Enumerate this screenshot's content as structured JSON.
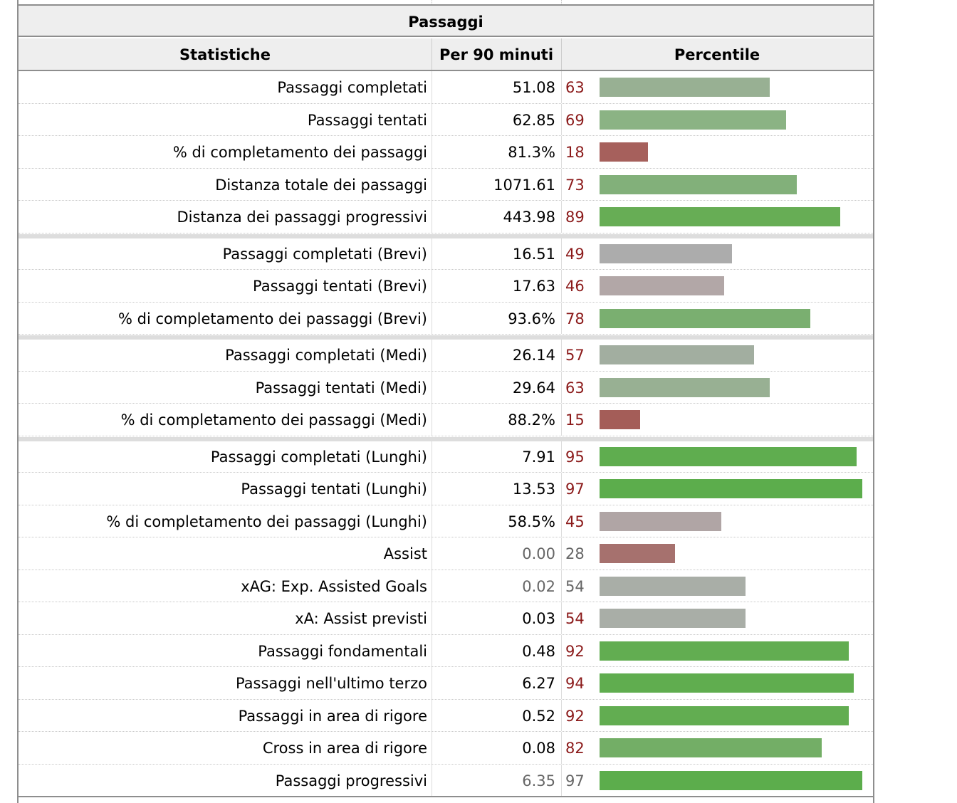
{
  "table": {
    "caption": "Passaggi",
    "headers": {
      "stat": "Statistiche",
      "per90": "Per 90 minuti",
      "percentile": "Percentile"
    },
    "rows": [
      {
        "label": "Passaggi completati",
        "value": "51.08",
        "percentile": "63",
        "pct_num": 63,
        "color": "#98b093"
      },
      {
        "label": "Passaggi tentati",
        "value": "62.85",
        "percentile": "69",
        "pct_num": 69,
        "color": "#8bb384"
      },
      {
        "label": "% di completamento dei passaggi",
        "value": "81.3%",
        "percentile": "18",
        "pct_num": 18,
        "color": "#a6605c"
      },
      {
        "label": "Distanza totale dei passaggi",
        "value": "1071.61",
        "percentile": "73",
        "pct_num": 73,
        "color": "#82b07a"
      },
      {
        "label": "Distanza dei passaggi progressivi",
        "value": "443.98",
        "percentile": "89",
        "pct_num": 89,
        "color": "#67ad55"
      },
      {
        "label": "Passaggi completati (Brevi)",
        "value": "16.51",
        "percentile": "49",
        "pct_num": 49,
        "color": "#acacac"
      },
      {
        "label": "Passaggi tentati (Brevi)",
        "value": "17.63",
        "percentile": "46",
        "pct_num": 46,
        "color": "#b2a7a7"
      },
      {
        "label": "% di completamento dei passaggi (Brevi)",
        "value": "93.6%",
        "percentile": "78",
        "pct_num": 78,
        "color": "#7aaf70"
      },
      {
        "label": "Passaggi completati (Medi)",
        "value": "26.14",
        "percentile": "57",
        "pct_num": 57,
        "color": "#a2aea0"
      },
      {
        "label": "Passaggi tentati (Medi)",
        "value": "29.64",
        "percentile": "63",
        "pct_num": 63,
        "color": "#98b093"
      },
      {
        "label": "% di completamento dei passaggi (Medi)",
        "value": "88.2%",
        "percentile": "15",
        "pct_num": 15,
        "color": "#a45d58"
      },
      {
        "label": "Passaggi completati (Lunghi)",
        "value": "7.91",
        "percentile": "95",
        "pct_num": 95,
        "color": "#5fad4f"
      },
      {
        "label": "Passaggi tentati (Lunghi)",
        "value": "13.53",
        "percentile": "97",
        "pct_num": 97,
        "color": "#5cad4c"
      },
      {
        "label": "% di completamento dei passaggi (Lunghi)",
        "value": "58.5%",
        "percentile": "45",
        "pct_num": 45,
        "color": "#b0a5a5"
      },
      {
        "label": "Assist",
        "value": "0.00",
        "percentile": "28",
        "pct_num": 28,
        "color": "#a6716e",
        "value_grey": true,
        "pct_grey": true
      },
      {
        "label": "xAG: Exp. Assisted Goals",
        "value": "0.02",
        "percentile": "54",
        "pct_num": 54,
        "color": "#a9aea7",
        "value_grey": true,
        "pct_grey": true
      },
      {
        "label": "xA: Assist previsti",
        "value": "0.03",
        "percentile": "54",
        "pct_num": 54,
        "color": "#a9aea7"
      },
      {
        "label": "Passaggi fondamentali",
        "value": "0.48",
        "percentile": "92",
        "pct_num": 92,
        "color": "#62ad51"
      },
      {
        "label": "Passaggi nell'ultimo terzo",
        "value": "6.27",
        "percentile": "94",
        "pct_num": 94,
        "color": "#60ad4f"
      },
      {
        "label": "Passaggi in area di rigore",
        "value": "0.52",
        "percentile": "92",
        "pct_num": 92,
        "color": "#62ad51"
      },
      {
        "label": "Cross in area di rigore",
        "value": "0.08",
        "percentile": "82",
        "pct_num": 82,
        "color": "#73ae66"
      },
      {
        "label": "Passaggi progressivi",
        "value": "6.35",
        "percentile": "97",
        "pct_num": 97,
        "color": "#5cad4c",
        "value_grey": true,
        "pct_grey": true
      }
    ]
  }
}
